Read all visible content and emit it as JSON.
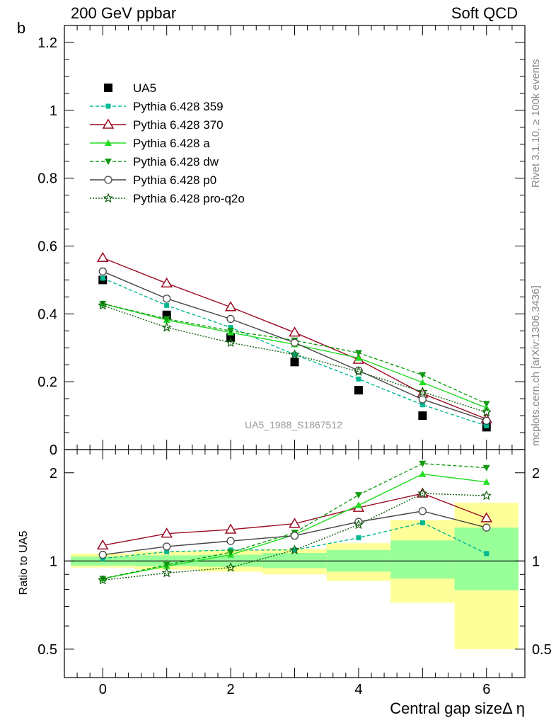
{
  "header": {
    "left": "200 GeV ppbar",
    "right": "Soft QCD"
  },
  "side_text": {
    "rivet": "Rivet 3.1.10, ≥ 100k events",
    "mcplots": "mcplots.cern.ch [arXiv:1306.3436]"
  },
  "chart_data": [
    {
      "type": "line",
      "ylabel": "b",
      "xlim": [
        -0.6,
        6.6
      ],
      "ylim": [
        0,
        1.25
      ],
      "y_ticks": [
        0,
        0.2,
        0.4,
        0.6,
        0.8,
        1,
        1.2
      ],
      "y_tick_labels": [
        "0",
        "0.2",
        "0.4",
        "0.6",
        "0.8",
        "1",
        "1.2"
      ],
      "analysis_label": "UA5_1988_S1867512",
      "x": [
        0,
        1,
        2,
        3,
        4,
        5,
        6
      ],
      "series": [
        {
          "name": "UA5",
          "color": "#000000",
          "marker": "square-filled",
          "line": "none",
          "values": [
            0.5,
            0.397,
            0.33,
            0.258,
            0.175,
            0.1,
            0.066
          ]
        },
        {
          "name": "Pythia 6.428 359",
          "color": "#00b894",
          "marker": "square-small",
          "line": "dashed",
          "values": [
            0.505,
            0.425,
            0.36,
            0.28,
            0.208,
            0.132,
            0.07
          ]
        },
        {
          "name": "Pythia 6.428 370",
          "color": "#9b0a24",
          "marker": "triangle-open",
          "line": "solid",
          "values": [
            0.565,
            0.49,
            0.42,
            0.345,
            0.265,
            0.165,
            0.09
          ]
        },
        {
          "name": "Pythia 6.428 a",
          "color": "#22dd22",
          "marker": "triangle-filled",
          "line": "solid",
          "values": [
            0.43,
            0.382,
            0.345,
            0.31,
            0.27,
            0.198,
            0.123
          ]
        },
        {
          "name": "Pythia 6.428 dw",
          "color": "#109a10",
          "marker": "triangle-down-filled",
          "line": "dashed",
          "values": [
            0.43,
            0.385,
            0.35,
            0.322,
            0.285,
            0.22,
            0.135
          ]
        },
        {
          "name": "Pythia 6.428 p0",
          "color": "#444444",
          "marker": "circle-open",
          "line": "solid",
          "values": [
            0.525,
            0.445,
            0.385,
            0.315,
            0.233,
            0.148,
            0.085
          ]
        },
        {
          "name": "Pythia 6.428 pro-q2o",
          "color": "#106010",
          "marker": "star-open",
          "line": "dotted",
          "values": [
            0.425,
            0.36,
            0.315,
            0.28,
            0.23,
            0.17,
            0.11
          ]
        }
      ]
    },
    {
      "type": "line",
      "ylabel": "Ratio to UA5",
      "xlabel": "Central gap sizeΔ η",
      "scale": "log",
      "xlim": [
        -0.6,
        6.6
      ],
      "ylim": [
        0.4,
        2.4
      ],
      "x_ticks": [
        0,
        2,
        4,
        6
      ],
      "x_tick_labels": [
        "0",
        "2",
        "4",
        "6"
      ],
      "y_ticks": [
        0.5,
        1,
        2
      ],
      "y_tick_labels": [
        "0.5",
        "1",
        "2"
      ],
      "x": [
        0,
        1,
        2,
        3,
        4,
        5,
        6
      ],
      "uncertainty_bands": {
        "x_edges": [
          -0.5,
          0.5,
          1.5,
          2.5,
          3.5,
          4.5,
          5.5,
          6.5
        ],
        "yellow_low": [
          0.95,
          0.935,
          0.92,
          0.9,
          0.855,
          0.72,
          0.5
        ],
        "yellow_high": [
          1.06,
          1.08,
          1.09,
          1.1,
          1.15,
          1.38,
          1.58
        ],
        "green_low": [
          0.965,
          0.96,
          0.955,
          0.945,
          0.92,
          0.87,
          0.795
        ],
        "green_high": [
          1.035,
          1.045,
          1.05,
          1.065,
          1.09,
          1.175,
          1.3
        ],
        "yellow_color": "#ffff99",
        "green_color": "#99ff99"
      },
      "series": [
        {
          "name": "Pythia 6.428 359",
          "values": [
            1.02,
            1.075,
            1.09,
            1.09,
            1.2,
            1.35,
            1.06
          ]
        },
        {
          "name": "Pythia 6.428 370",
          "values": [
            1.13,
            1.24,
            1.28,
            1.34,
            1.52,
            1.7,
            1.4
          ]
        },
        {
          "name": "Pythia 6.428 a",
          "values": [
            0.87,
            0.96,
            1.05,
            1.23,
            1.55,
            1.98,
            1.86
          ]
        },
        {
          "name": "Pythia 6.428 dw",
          "values": [
            0.87,
            0.97,
            1.07,
            1.25,
            1.68,
            2.15,
            2.08
          ]
        },
        {
          "name": "Pythia 6.428 p0",
          "values": [
            1.05,
            1.12,
            1.17,
            1.22,
            1.36,
            1.48,
            1.3
          ]
        },
        {
          "name": "Pythia 6.428 pro-q2o",
          "values": [
            0.86,
            0.91,
            0.95,
            1.09,
            1.33,
            1.7,
            1.67
          ]
        }
      ]
    }
  ]
}
